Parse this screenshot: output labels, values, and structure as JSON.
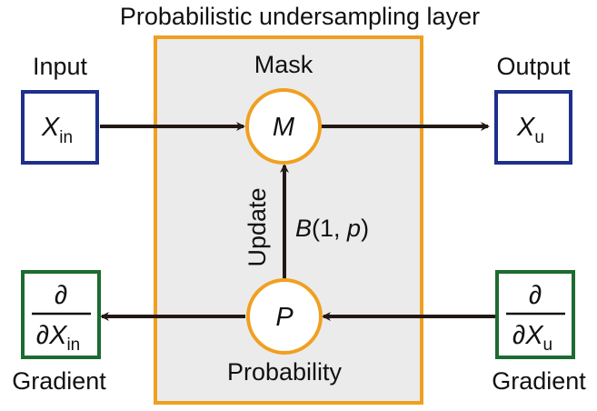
{
  "title": "Probabilistic undersampling layer",
  "mask_label": "Mask",
  "probability_label": "Probability",
  "update_label": "Update",
  "input": {
    "label": "Input",
    "symbol": "X",
    "subscript": "in"
  },
  "output": {
    "label": "Output",
    "symbol": "X",
    "subscript": "u"
  },
  "mask_node": {
    "symbol": "M"
  },
  "prob_node": {
    "symbol": "P"
  },
  "bernoulli": {
    "func": "B",
    "open": "(1, ",
    "param": "p",
    "close": ")"
  },
  "grad_left": {
    "label": "Gradient",
    "numerator": "∂",
    "partial": "∂",
    "symbol": "X",
    "subscript": "in"
  },
  "grad_right": {
    "label": "Gradient",
    "numerator": "∂",
    "partial": "∂",
    "symbol": "X",
    "subscript": "u"
  },
  "colors": {
    "layer_fill": "#ebebeb",
    "layer_border": "#f0a020",
    "node_border": "#f0a020",
    "input_output_border": "#1e2f8c",
    "gradient_border": "#1d6b30",
    "arrow": "#231815"
  }
}
